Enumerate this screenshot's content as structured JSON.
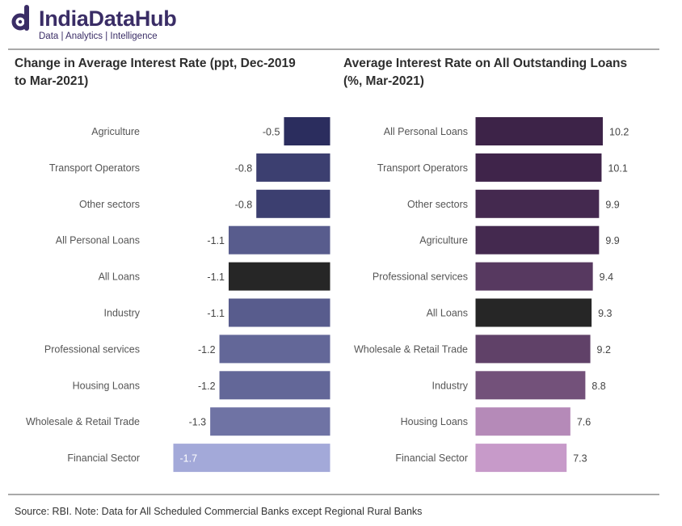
{
  "brand": {
    "name": "IndiaDataHub",
    "tagline": "Data | Analytics | Intelligence"
  },
  "source_note": "Source: RBI. Note: Data for All Scheduled Commercial Banks except Regional Rural Banks",
  "colors": {
    "left_dark": "#2b2d5e",
    "left_light": "#a3a9d9",
    "right_dark": "#3d2348",
    "right_light": "#c79ac9",
    "all_loans": "#262626"
  },
  "chart_data": [
    {
      "type": "bar",
      "orientation": "horizontal",
      "title": "Change in Average Interest Rate (ppt, Dec-2019 to Mar-2021)",
      "title_lines": [
        "Change in Average Interest Rate (ppt, Dec-2019",
        "to Mar-2021)"
      ],
      "xlim": [
        -1.7,
        0
      ],
      "categories": [
        "Agriculture",
        "Transport Operators",
        "Other sectors",
        "All Personal Loans",
        "All Loans",
        "Industry",
        "Professional services",
        "Housing Loans",
        "Wholesale & Retail Trade",
        "Financial Sector"
      ],
      "values": [
        -0.5,
        -0.8,
        -0.8,
        -1.1,
        -1.1,
        -1.1,
        -1.2,
        -1.2,
        -1.3,
        -1.7
      ],
      "value_labels": [
        "-0.5",
        "-0.8",
        "-0.8",
        "-1.1",
        "-1.1",
        "-1.1",
        "-1.2",
        "-1.2",
        "-1.3",
        "-1.7"
      ],
      "highlight": "All Loans"
    },
    {
      "type": "bar",
      "orientation": "horizontal",
      "title": "Average Interest Rate on All Outstanding Loans (%, Mar-2021)",
      "title_lines": [
        "Average Interest Rate on All Outstanding Loans",
        "(%, Mar-2021)"
      ],
      "xlim": [
        0,
        10.2
      ],
      "categories": [
        "All Personal Loans",
        "Transport Operators",
        "Other sectors",
        "Agriculture",
        "Professional services",
        "All Loans",
        "Wholesale & Retail Trade",
        "Industry",
        "Housing Loans",
        "Financial Sector"
      ],
      "values": [
        10.2,
        10.1,
        9.9,
        9.9,
        9.4,
        9.3,
        9.2,
        8.8,
        7.6,
        7.3
      ],
      "value_labels": [
        "10.2",
        "10.1",
        "9.9",
        "9.9",
        "9.4",
        "9.3",
        "9.2",
        "8.8",
        "7.6",
        "7.3"
      ],
      "highlight": "All Loans"
    }
  ]
}
